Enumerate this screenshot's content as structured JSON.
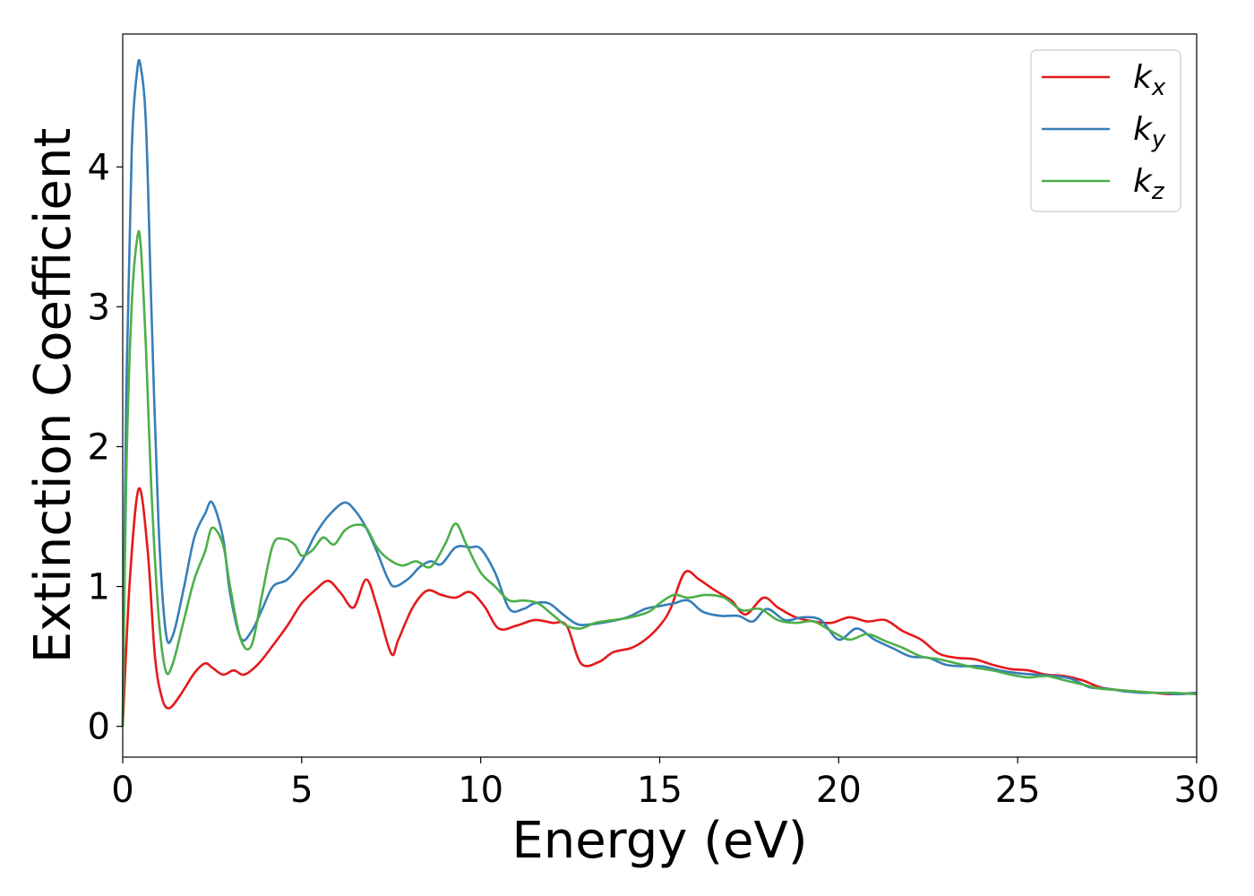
{
  "chart_data": {
    "type": "line",
    "title": "",
    "xlabel": "Energy (eV)",
    "ylabel": "Extinction Coefficient",
    "xlim": [
      0,
      30
    ],
    "ylim": [
      -0.22,
      4.95
    ],
    "xticks": [
      0,
      5,
      10,
      15,
      20,
      25,
      30
    ],
    "xtick_labels": [
      "0",
      "5",
      "10",
      "15",
      "20",
      "25",
      "30"
    ],
    "yticks": [
      0,
      1,
      2,
      3,
      4
    ],
    "ytick_labels": [
      "0",
      "1",
      "2",
      "3",
      "4"
    ],
    "grid": false,
    "legend_position": "top-right",
    "series": [
      {
        "name": "k",
        "subscript": "x",
        "color": "#e41a1c",
        "x": [
          0,
          0.2,
          0.45,
          0.7,
          0.9,
          1.1,
          1.3,
          1.6,
          2.0,
          2.3,
          2.5,
          2.8,
          3.1,
          3.4,
          3.8,
          4.2,
          4.6,
          5.0,
          5.4,
          5.75,
          6.1,
          6.45,
          6.8,
          7.1,
          7.5,
          7.7,
          8.1,
          8.5,
          8.9,
          9.3,
          9.7,
          10.1,
          10.5,
          11.0,
          11.5,
          12.0,
          12.4,
          12.8,
          13.3,
          13.7,
          14.2,
          14.6,
          15.0,
          15.3,
          15.7,
          16.1,
          16.5,
          17.0,
          17.4,
          17.9,
          18.3,
          18.8,
          19.3,
          19.8,
          20.3,
          20.8,
          21.3,
          21.8,
          22.3,
          22.8,
          23.3,
          23.8,
          24.3,
          24.8,
          25.3,
          25.8,
          26.3,
          26.8,
          27.3,
          27.8,
          28.3,
          28.8,
          29.3,
          30.0
        ],
        "y": [
          0.0,
          1.05,
          1.7,
          1.25,
          0.5,
          0.2,
          0.13,
          0.22,
          0.38,
          0.45,
          0.42,
          0.37,
          0.4,
          0.37,
          0.45,
          0.58,
          0.72,
          0.88,
          0.98,
          1.04,
          0.95,
          0.85,
          1.05,
          0.86,
          0.52,
          0.62,
          0.85,
          0.97,
          0.94,
          0.92,
          0.96,
          0.86,
          0.7,
          0.72,
          0.76,
          0.74,
          0.72,
          0.45,
          0.46,
          0.53,
          0.56,
          0.62,
          0.72,
          0.84,
          1.1,
          1.05,
          0.98,
          0.9,
          0.8,
          0.92,
          0.85,
          0.78,
          0.75,
          0.74,
          0.78,
          0.75,
          0.76,
          0.68,
          0.62,
          0.52,
          0.49,
          0.48,
          0.44,
          0.41,
          0.4,
          0.37,
          0.36,
          0.33,
          0.28,
          0.26,
          0.25,
          0.24,
          0.23,
          0.24
        ]
      },
      {
        "name": "k",
        "subscript": "y",
        "color": "#377eb8",
        "x": [
          0,
          0.1,
          0.25,
          0.4,
          0.5,
          0.65,
          0.8,
          1.0,
          1.2,
          1.4,
          1.7,
          2.0,
          2.3,
          2.5,
          2.8,
          3.0,
          3.3,
          3.6,
          3.9,
          4.2,
          4.6,
          5.0,
          5.4,
          5.8,
          6.2,
          6.5,
          6.8,
          7.1,
          7.4,
          7.6,
          8.0,
          8.3,
          8.6,
          8.9,
          9.3,
          9.7,
          10.0,
          10.4,
          10.8,
          11.2,
          11.5,
          11.9,
          12.3,
          12.7,
          13.1,
          13.6,
          14.1,
          14.6,
          15.0,
          15.4,
          15.8,
          16.2,
          16.7,
          17.2,
          17.6,
          18.0,
          18.5,
          19.0,
          19.5,
          20.0,
          20.5,
          21.0,
          21.5,
          22.0,
          22.5,
          23.0,
          23.5,
          24.0,
          24.5,
          25.0,
          25.5,
          26.0,
          26.5,
          27.0,
          27.5,
          28.0,
          28.5,
          29.0,
          29.5,
          30.0
        ],
        "y": [
          0.0,
          2.4,
          4.1,
          4.68,
          4.72,
          4.3,
          3.0,
          1.45,
          0.68,
          0.65,
          0.98,
          1.35,
          1.52,
          1.6,
          1.35,
          0.95,
          0.63,
          0.68,
          0.84,
          1.0,
          1.05,
          1.18,
          1.38,
          1.52,
          1.6,
          1.54,
          1.42,
          1.25,
          1.06,
          1.0,
          1.06,
          1.14,
          1.18,
          1.16,
          1.28,
          1.28,
          1.27,
          1.1,
          0.84,
          0.84,
          0.88,
          0.88,
          0.8,
          0.73,
          0.73,
          0.75,
          0.78,
          0.84,
          0.86,
          0.88,
          0.9,
          0.82,
          0.79,
          0.79,
          0.75,
          0.84,
          0.76,
          0.78,
          0.76,
          0.62,
          0.7,
          0.62,
          0.56,
          0.5,
          0.49,
          0.44,
          0.43,
          0.43,
          0.4,
          0.38,
          0.37,
          0.36,
          0.34,
          0.28,
          0.27,
          0.25,
          0.24,
          0.24,
          0.23,
          0.24
        ]
      },
      {
        "name": "k",
        "subscript": "z",
        "color": "#4daf4a",
        "x": [
          0,
          0.1,
          0.25,
          0.4,
          0.5,
          0.65,
          0.8,
          1.0,
          1.2,
          1.4,
          1.7,
          2.0,
          2.3,
          2.5,
          2.8,
          3.0,
          3.3,
          3.6,
          3.9,
          4.2,
          4.5,
          4.8,
          5.0,
          5.3,
          5.6,
          5.9,
          6.2,
          6.5,
          6.8,
          7.1,
          7.4,
          7.8,
          8.2,
          8.6,
          9.0,
          9.3,
          9.6,
          10.0,
          10.4,
          10.8,
          11.2,
          11.6,
          12.0,
          12.4,
          12.8,
          13.2,
          13.7,
          14.2,
          14.7,
          15.0,
          15.4,
          15.8,
          16.3,
          16.8,
          17.3,
          17.8,
          18.3,
          18.8,
          19.3,
          19.8,
          20.3,
          20.8,
          21.3,
          21.8,
          22.3,
          22.8,
          23.3,
          23.8,
          24.3,
          24.8,
          25.3,
          25.8,
          26.3,
          26.8,
          27.3,
          27.8,
          28.3,
          28.8,
          29.3,
          30.0
        ],
        "y": [
          0.0,
          1.8,
          3.0,
          3.48,
          3.45,
          2.7,
          1.7,
          0.8,
          0.4,
          0.45,
          0.75,
          1.05,
          1.25,
          1.42,
          1.3,
          1.0,
          0.62,
          0.58,
          0.95,
          1.3,
          1.34,
          1.3,
          1.22,
          1.26,
          1.35,
          1.3,
          1.4,
          1.44,
          1.42,
          1.28,
          1.2,
          1.15,
          1.18,
          1.14,
          1.3,
          1.45,
          1.3,
          1.1,
          1.0,
          0.9,
          0.9,
          0.88,
          0.8,
          0.72,
          0.7,
          0.74,
          0.76,
          0.78,
          0.82,
          0.88,
          0.94,
          0.92,
          0.94,
          0.92,
          0.83,
          0.84,
          0.76,
          0.74,
          0.75,
          0.68,
          0.62,
          0.66,
          0.61,
          0.56,
          0.5,
          0.48,
          0.45,
          0.42,
          0.4,
          0.37,
          0.35,
          0.36,
          0.33,
          0.3,
          0.27,
          0.26,
          0.25,
          0.24,
          0.24,
          0.23
        ]
      }
    ]
  }
}
